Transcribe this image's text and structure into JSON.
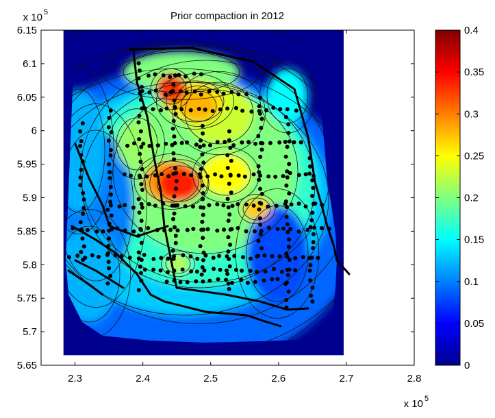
{
  "chart_data": {
    "type": "heatmap",
    "title": "Prior compaction in 2012",
    "xlabel": "",
    "ylabel": "",
    "x_exponent_label": "x 10",
    "x_exponent": "5",
    "y_exponent_label": "x 10",
    "y_exponent": "5",
    "xlim": [
      2.25,
      2.8
    ],
    "ylim": [
      5.65,
      6.15
    ],
    "x_ticks": [
      "2.3",
      "2.4",
      "2.5",
      "2.6",
      "2.7",
      "2.8"
    ],
    "y_ticks": [
      "5.65",
      "5.7",
      "5.75",
      "5.8",
      "5.85",
      "5.9",
      "5.95",
      "6",
      "6.05",
      "6.1",
      "6.15"
    ],
    "colorbar": {
      "range": [
        0,
        0.4
      ],
      "ticks": [
        "0",
        "0.05",
        "0.1",
        "0.15",
        "0.2",
        "0.25",
        "0.3",
        "0.35",
        "0.4"
      ],
      "colormap": "jet"
    },
    "data_extent": {
      "x": [
        2.283,
        2.696
      ],
      "y": [
        5.665,
        6.15
      ]
    },
    "peaks": [
      {
        "x": 2.455,
        "y": 5.915,
        "value": 0.37
      },
      {
        "x": 2.435,
        "y": 6.045,
        "value": 0.32
      },
      {
        "x": 2.48,
        "y": 6.02,
        "value": 0.3
      },
      {
        "x": 2.545,
        "y": 5.91,
        "value": 0.28
      },
      {
        "x": 2.58,
        "y": 5.885,
        "value": 0.3
      },
      {
        "x": 2.5,
        "y": 5.96,
        "value": 0.27
      }
    ],
    "grid": false
  }
}
